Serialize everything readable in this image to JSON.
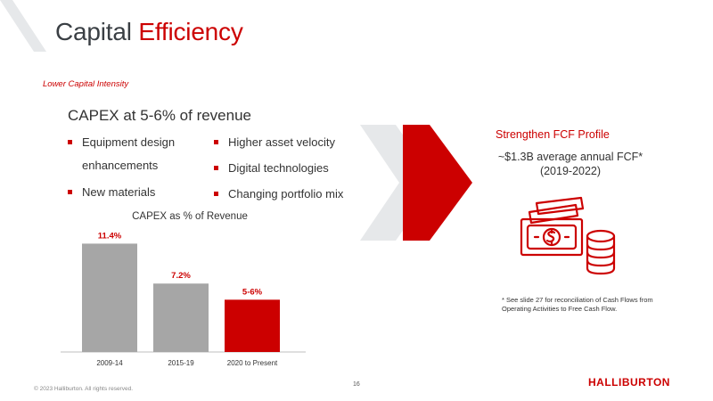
{
  "slide": {
    "title_part1": "Capital ",
    "title_part2": "Efficiency",
    "subtitle": "Lower Capital Intensity",
    "headline": "CAPEX at 5-6% of revenue",
    "bullets_left": [
      "Equipment design enhancements",
      "New materials"
    ],
    "bullets_right": [
      "Higher asset velocity",
      "Digital technologies",
      "Changing portfolio mix"
    ],
    "right_panel": {
      "heading": "Strengthen FCF Profile",
      "line1": "~$1.3B average annual FCF*",
      "line2": "(2019-2022)",
      "icon": "money-cash-and-coins-icon"
    },
    "footnote": "* See slide 27 for reconciliation of Cash Flows from Operating Activities to Free Cash Flow.",
    "copyright": "© 2023 Halliburton. All rights reserved.",
    "page_number": "16",
    "logo_text": "HALLIBURTON"
  },
  "colors": {
    "accent": "#cc0000",
    "bar_gray": "#a6a6a6",
    "arrow_gray": "#e6e8ea",
    "text": "#333333"
  },
  "chart_data": {
    "type": "bar",
    "title": "CAPEX as % of Revenue",
    "categories": [
      "2009-14",
      "2015-19",
      "2020 to Present"
    ],
    "values": [
      11.4,
      7.2,
      5.5
    ],
    "data_labels": [
      "11.4%",
      "7.2%",
      "5-6%"
    ],
    "bar_colors": [
      "#a6a6a6",
      "#a6a6a6",
      "#cc0000"
    ],
    "label_colors": [
      "#cc0000",
      "#cc0000",
      "#cc0000"
    ],
    "xlabel": "",
    "ylabel": "",
    "ylim": [
      0,
      12
    ],
    "grid": false
  }
}
